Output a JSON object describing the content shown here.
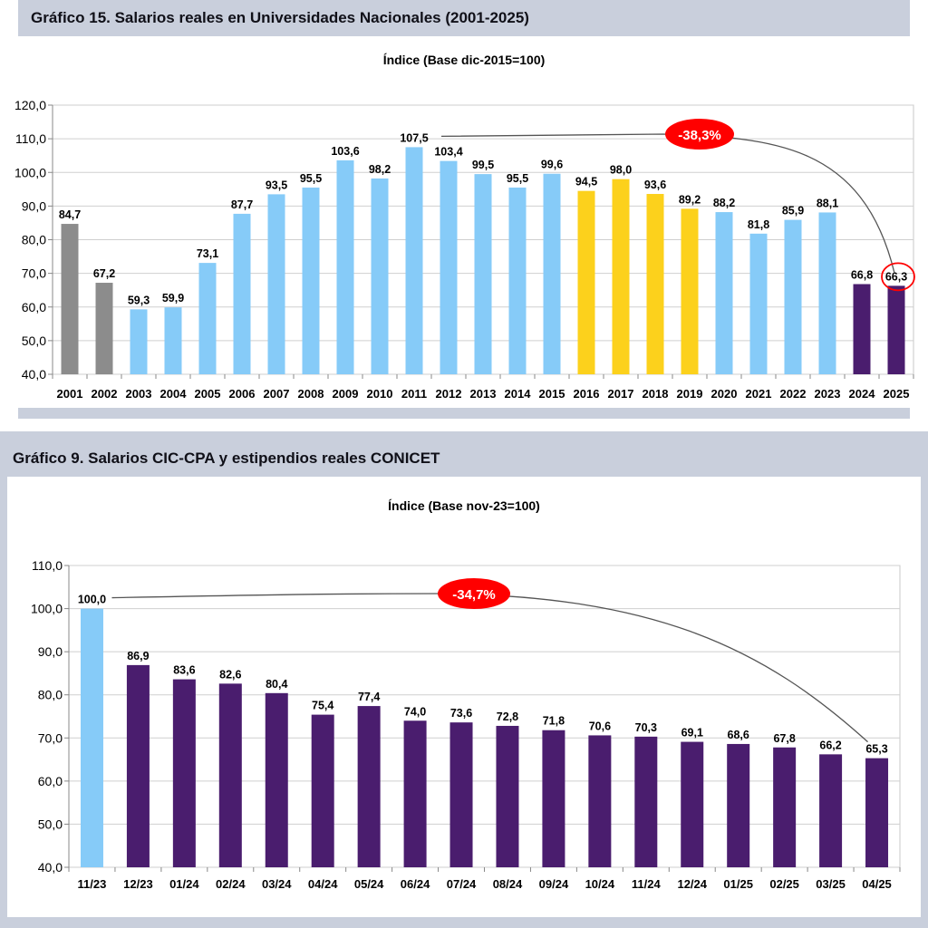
{
  "colors": {
    "gray": "#8c8c8c",
    "light_blue": "#86cbf8",
    "yellow": "#fcd11c",
    "purple": "#4a1d6e",
    "red": "#ff0000",
    "panel_band": "#c9cfdc"
  },
  "chart_data": [
    {
      "type": "bar",
      "title": "Gráfico 15. Salarios reales en Universidades Nacionales (2001-2025)",
      "subtitle": "Índice (Base dic-2015=100)",
      "ylim": [
        40,
        120
      ],
      "yticks": [
        "40,0",
        "50,0",
        "60,0",
        "70,0",
        "80,0",
        "90,0",
        "100,0",
        "110,0",
        "120,0"
      ],
      "grid": true,
      "categories": [
        "2001",
        "2002",
        "2003",
        "2004",
        "2005",
        "2006",
        "2007",
        "2008",
        "2009",
        "2010",
        "2011",
        "2012",
        "2013",
        "2014",
        "2015",
        "2016",
        "2017",
        "2018",
        "2019",
        "2020",
        "2021",
        "2022",
        "2023",
        "2024",
        "2025"
      ],
      "values": [
        84.7,
        67.2,
        59.3,
        59.9,
        73.1,
        87.7,
        93.5,
        95.5,
        103.6,
        98.2,
        107.5,
        103.4,
        99.5,
        95.5,
        99.6,
        94.5,
        98.0,
        93.6,
        89.2,
        88.2,
        81.8,
        85.9,
        88.1,
        66.8,
        66.3
      ],
      "labels": [
        "84,7",
        "67,2",
        "59,3",
        "59,9",
        "73,1",
        "87,7",
        "93,5",
        "95,5",
        "103,6",
        "98,2",
        "107,5",
        "103,4",
        "99,5",
        "95,5",
        "99,6",
        "94,5",
        "98,0",
        "93,6",
        "89,2",
        "88,2",
        "81,8",
        "85,9",
        "88,1",
        "66,8",
        "66,3"
      ],
      "bar_colors": [
        "gray",
        "gray",
        "light_blue",
        "light_blue",
        "light_blue",
        "light_blue",
        "light_blue",
        "light_blue",
        "light_blue",
        "light_blue",
        "light_blue",
        "light_blue",
        "light_blue",
        "light_blue",
        "light_blue",
        "yellow",
        "yellow",
        "yellow",
        "yellow",
        "light_blue",
        "light_blue",
        "light_blue",
        "light_blue",
        "purple",
        "purple"
      ],
      "annotation": {
        "text": "-38,3%",
        "from_index": 10,
        "to_index": 24,
        "circled_index": 24
      }
    },
    {
      "type": "bar",
      "title": "Gráfico 9. Salarios CIC-CPA y estipendios reales CONICET",
      "subtitle": "Índice (Base nov-23=100)",
      "ylim": [
        40,
        110
      ],
      "yticks": [
        "40,0",
        "50,0",
        "60,0",
        "70,0",
        "80,0",
        "90,0",
        "100,0",
        "110,0"
      ],
      "grid": true,
      "categories": [
        "11/23",
        "12/23",
        "01/24",
        "02/24",
        "03/24",
        "04/24",
        "05/24",
        "06/24",
        "07/24",
        "08/24",
        "09/24",
        "10/24",
        "11/24",
        "12/24",
        "01/25",
        "02/25",
        "03/25",
        "04/25"
      ],
      "values": [
        100.0,
        86.9,
        83.6,
        82.6,
        80.4,
        75.4,
        77.4,
        74.0,
        73.6,
        72.8,
        71.8,
        70.6,
        70.3,
        69.1,
        68.6,
        67.8,
        66.2,
        65.3
      ],
      "labels": [
        "100,0",
        "86,9",
        "83,6",
        "82,6",
        "80,4",
        "75,4",
        "77,4",
        "74,0",
        "73,6",
        "72,8",
        "71,8",
        "70,6",
        "70,3",
        "69,1",
        "68,6",
        "67,8",
        "66,2",
        "65,3"
      ],
      "bar_colors": [
        "light_blue",
        "purple",
        "purple",
        "purple",
        "purple",
        "purple",
        "purple",
        "purple",
        "purple",
        "purple",
        "purple",
        "purple",
        "purple",
        "purple",
        "purple",
        "purple",
        "purple",
        "purple"
      ],
      "annotation": {
        "text": "-34,7%",
        "from_index": 0,
        "to_index": 17
      }
    }
  ]
}
